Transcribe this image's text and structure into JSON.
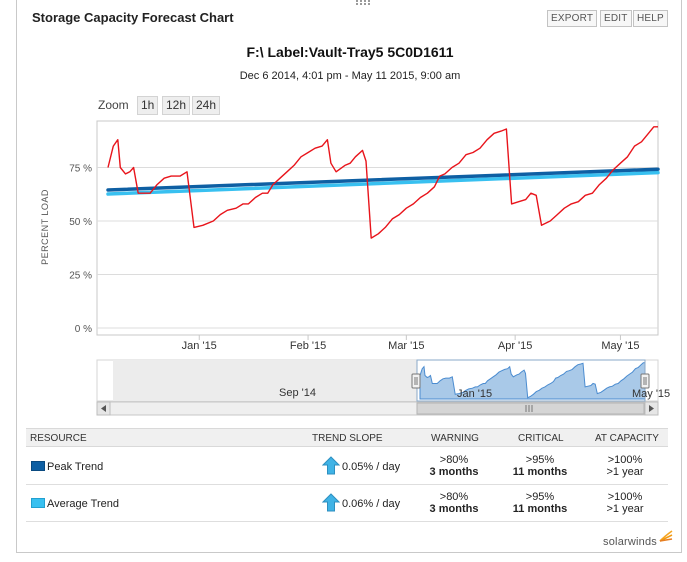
{
  "panel": {
    "title": "Storage Capacity Forecast Chart",
    "buttons": [
      "EXPORT",
      "EDIT",
      "HELP"
    ]
  },
  "chart": {
    "title": "F:\\ Label:Vault-Tray5 5C0D1611",
    "subtitle": "Dec 6 2014, 4:01 pm - May 11 2015, 9:00 am",
    "zoom": {
      "label": "Zoom",
      "options": [
        "1h",
        "12h",
        "24h"
      ]
    }
  },
  "chart_data": {
    "type": "line",
    "ylabel": "PERCENT LOAD",
    "ylim": [
      0,
      100
    ],
    "y_ticks": [
      0,
      25,
      50,
      75
    ],
    "y_tick_labels": [
      "0 %",
      "25 %",
      "50 %",
      "75 %"
    ],
    "x_tick_labels": [
      "Jan '15",
      "Feb '15",
      "Mar '15",
      "Apr '15",
      "May '15"
    ],
    "x_tick_days": [
      26,
      57,
      85,
      116,
      146
    ],
    "x_range_days": [
      0,
      156.7
    ],
    "series": [
      {
        "name": "Percent Load",
        "color": "#e8141b",
        "points": [
          [
            0,
            75
          ],
          [
            1.5,
            85
          ],
          [
            2.8,
            88
          ],
          [
            3.5,
            75
          ],
          [
            5,
            72
          ],
          [
            6.2,
            73
          ],
          [
            7.3,
            75
          ],
          [
            8.6,
            63
          ],
          [
            10,
            63
          ],
          [
            12,
            63
          ],
          [
            14,
            67
          ],
          [
            16,
            70
          ],
          [
            18,
            71
          ],
          [
            20.5,
            71
          ],
          [
            22.5,
            73
          ],
          [
            24.5,
            47
          ],
          [
            27,
            48
          ],
          [
            30,
            50
          ],
          [
            32,
            53
          ],
          [
            34,
            55
          ],
          [
            36.5,
            56
          ],
          [
            38.5,
            58
          ],
          [
            40,
            58
          ],
          [
            42,
            61
          ],
          [
            44,
            63
          ],
          [
            45.5,
            63
          ],
          [
            47,
            67
          ],
          [
            49,
            70
          ],
          [
            51,
            73
          ],
          [
            53,
            76
          ],
          [
            55,
            80
          ],
          [
            57,
            82
          ],
          [
            59,
            84
          ],
          [
            61,
            85
          ],
          [
            62.5,
            88
          ],
          [
            63.5,
            77
          ],
          [
            65,
            73
          ],
          [
            67.5,
            76
          ],
          [
            69,
            77
          ],
          [
            70.5,
            80
          ],
          [
            72.5,
            83
          ],
          [
            73.5,
            78
          ],
          [
            75,
            42
          ],
          [
            77,
            44
          ],
          [
            79,
            47
          ],
          [
            81,
            51
          ],
          [
            83,
            53
          ],
          [
            85,
            56
          ],
          [
            87,
            58
          ],
          [
            89,
            61
          ],
          [
            91,
            63
          ],
          [
            93,
            66
          ],
          [
            94.5,
            71
          ],
          [
            96,
            72
          ],
          [
            98,
            75
          ],
          [
            100,
            77
          ],
          [
            102,
            81
          ],
          [
            104,
            82
          ],
          [
            106,
            84
          ],
          [
            108,
            88
          ],
          [
            110,
            91
          ],
          [
            112,
            92
          ],
          [
            113.5,
            93
          ],
          [
            115,
            58
          ],
          [
            117,
            59
          ],
          [
            119,
            60
          ],
          [
            120.5,
            63
          ],
          [
            122,
            62
          ],
          [
            123.5,
            48
          ],
          [
            126,
            50
          ],
          [
            128,
            53
          ],
          [
            130,
            56
          ],
          [
            132,
            58
          ],
          [
            134,
            59
          ],
          [
            136,
            62
          ],
          [
            138,
            63
          ],
          [
            140,
            67
          ],
          [
            142,
            70
          ],
          [
            144,
            74
          ],
          [
            146,
            77
          ],
          [
            148,
            80
          ],
          [
            150,
            85
          ],
          [
            152,
            87
          ],
          [
            154,
            91
          ],
          [
            155.5,
            94
          ],
          [
            156.7,
            94
          ]
        ]
      },
      {
        "name": "Peak Trend",
        "color": "#0e5fa3",
        "x": [
          0,
          156.7
        ],
        "values": [
          64.5,
          74.2
        ]
      },
      {
        "name": "Average Trend",
        "color": "#38c0f0",
        "x": [
          0,
          156.7
        ],
        "values": [
          62.6,
          72.6
        ]
      }
    ],
    "navigator": {
      "x_tick_labels": [
        "Sep '14",
        "Jan '15",
        "May '15"
      ]
    }
  },
  "table": {
    "headers": {
      "resource": "RESOURCE",
      "trend_slope": "TREND SLOPE",
      "warning": "WARNING",
      "critical": "CRITICAL",
      "at_capacity": "AT CAPACITY"
    },
    "rows": [
      {
        "name": "Peak Trend",
        "color": "#0e5fa3",
        "slope": "0.05% / day",
        "warning_threshold": ">80%",
        "warning_time": "3 months",
        "critical_threshold": ">95%",
        "critical_time": "11 months",
        "capacity_threshold": ">100%",
        "capacity_time": ">1 year"
      },
      {
        "name": "Average Trend",
        "color": "#38c0f0",
        "slope": "0.06% / day",
        "warning_threshold": ">80%",
        "warning_time": "3 months",
        "critical_threshold": ">95%",
        "critical_time": "11 months",
        "capacity_threshold": ">100%",
        "capacity_time": ">1 year"
      }
    ]
  },
  "brand": "solarwinds"
}
